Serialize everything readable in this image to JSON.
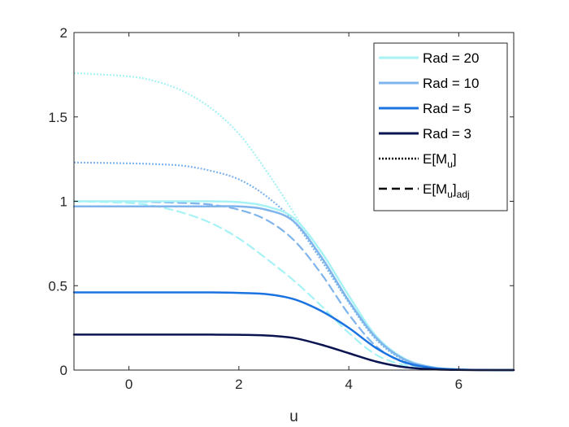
{
  "chart_data": {
    "type": "line",
    "title": "",
    "xlabel": "u",
    "ylabel": "",
    "xlim": [
      -1,
      7
    ],
    "ylim": [
      0,
      2
    ],
    "xticks": [
      "0",
      "2",
      "4",
      "6"
    ],
    "xtick_values": [
      0,
      2,
      4,
      6
    ],
    "yticks": [
      "0",
      "0.5",
      "1",
      "1.5",
      "2"
    ],
    "ytick_values": [
      0,
      0.5,
      1,
      1.5,
      2
    ],
    "grid": false,
    "legend_position": "top-right",
    "legend": [
      {
        "label": "Rad = 20",
        "style": "solid",
        "color": "#a6f2f5"
      },
      {
        "label": "Rad = 10",
        "style": "solid",
        "color": "#7fb4ec"
      },
      {
        "label": "Rad = 5",
        "style": "solid",
        "color": "#1a73e0"
      },
      {
        "label": "Rad = 3",
        "style": "solid",
        "color": "#0a1450"
      },
      {
        "label": "E[M",
        "subscript": "u",
        "suffix": "]",
        "style": "dotted",
        "color": "#000000"
      },
      {
        "label": "E[M",
        "subscript": "u",
        "suffix": "]",
        "subscript2": "adj",
        "style": "dashed",
        "color": "#000000"
      }
    ],
    "x": [
      -1,
      0,
      0.5,
      1,
      1.5,
      2,
      2.5,
      3,
      3.5,
      4,
      4.5,
      5,
      5.5,
      6,
      6.5,
      7
    ],
    "series": [
      {
        "name": "Rad = 20 E[M_u]",
        "color": "#a6f2f5",
        "style": "dotted",
        "values": [
          1.76,
          1.74,
          1.71,
          1.65,
          1.55,
          1.4,
          1.18,
          0.93,
          0.66,
          0.4,
          0.18,
          0.06,
          0.015,
          0.003,
          0.0005,
          0.0
        ]
      },
      {
        "name": "Rad = 10 E[M_u]",
        "color": "#7fb4ec",
        "style": "dotted",
        "values": [
          1.23,
          1.225,
          1.22,
          1.21,
          1.18,
          1.13,
          1.03,
          0.88,
          0.65,
          0.4,
          0.18,
          0.06,
          0.015,
          0.003,
          0.0005,
          0.0
        ]
      },
      {
        "name": "Rad = 20 E[M_u]adj",
        "color": "#a6f2f5",
        "style": "dashed",
        "values": [
          1.0,
          0.99,
          0.97,
          0.93,
          0.87,
          0.78,
          0.66,
          0.53,
          0.38,
          0.22,
          0.09,
          0.03,
          0.01,
          0.002,
          0.0004,
          0.0
        ]
      },
      {
        "name": "Rad = 10 E[M_u]adj",
        "color": "#7fb4ec",
        "style": "dashed",
        "values": [
          1.0,
          1.0,
          0.995,
          0.99,
          0.98,
          0.95,
          0.89,
          0.77,
          0.57,
          0.33,
          0.14,
          0.045,
          0.012,
          0.002,
          0.0004,
          0.0
        ]
      },
      {
        "name": "Rad = 20",
        "color": "#a6f2f5",
        "style": "solid",
        "values": [
          1.0,
          1.0,
          1.0,
          1.0,
          1.0,
          0.995,
          0.97,
          0.9,
          0.7,
          0.44,
          0.2,
          0.07,
          0.018,
          0.004,
          0.0006,
          0.0
        ]
      },
      {
        "name": "Rad = 10",
        "color": "#7fb4ec",
        "style": "solid",
        "values": [
          0.97,
          0.97,
          0.97,
          0.97,
          0.97,
          0.97,
          0.95,
          0.88,
          0.67,
          0.41,
          0.19,
          0.065,
          0.017,
          0.003,
          0.0005,
          0.0
        ]
      },
      {
        "name": "Rad = 5",
        "color": "#1a73e0",
        "style": "solid",
        "values": [
          0.46,
          0.46,
          0.46,
          0.46,
          0.46,
          0.457,
          0.45,
          0.42,
          0.35,
          0.25,
          0.13,
          0.048,
          0.013,
          0.003,
          0.0005,
          0.0
        ]
      },
      {
        "name": "Rad = 3",
        "color": "#0a1450",
        "style": "solid",
        "values": [
          0.21,
          0.21,
          0.21,
          0.21,
          0.21,
          0.209,
          0.205,
          0.19,
          0.15,
          0.1,
          0.05,
          0.018,
          0.005,
          0.001,
          0.0002,
          0.0
        ]
      }
    ]
  }
}
